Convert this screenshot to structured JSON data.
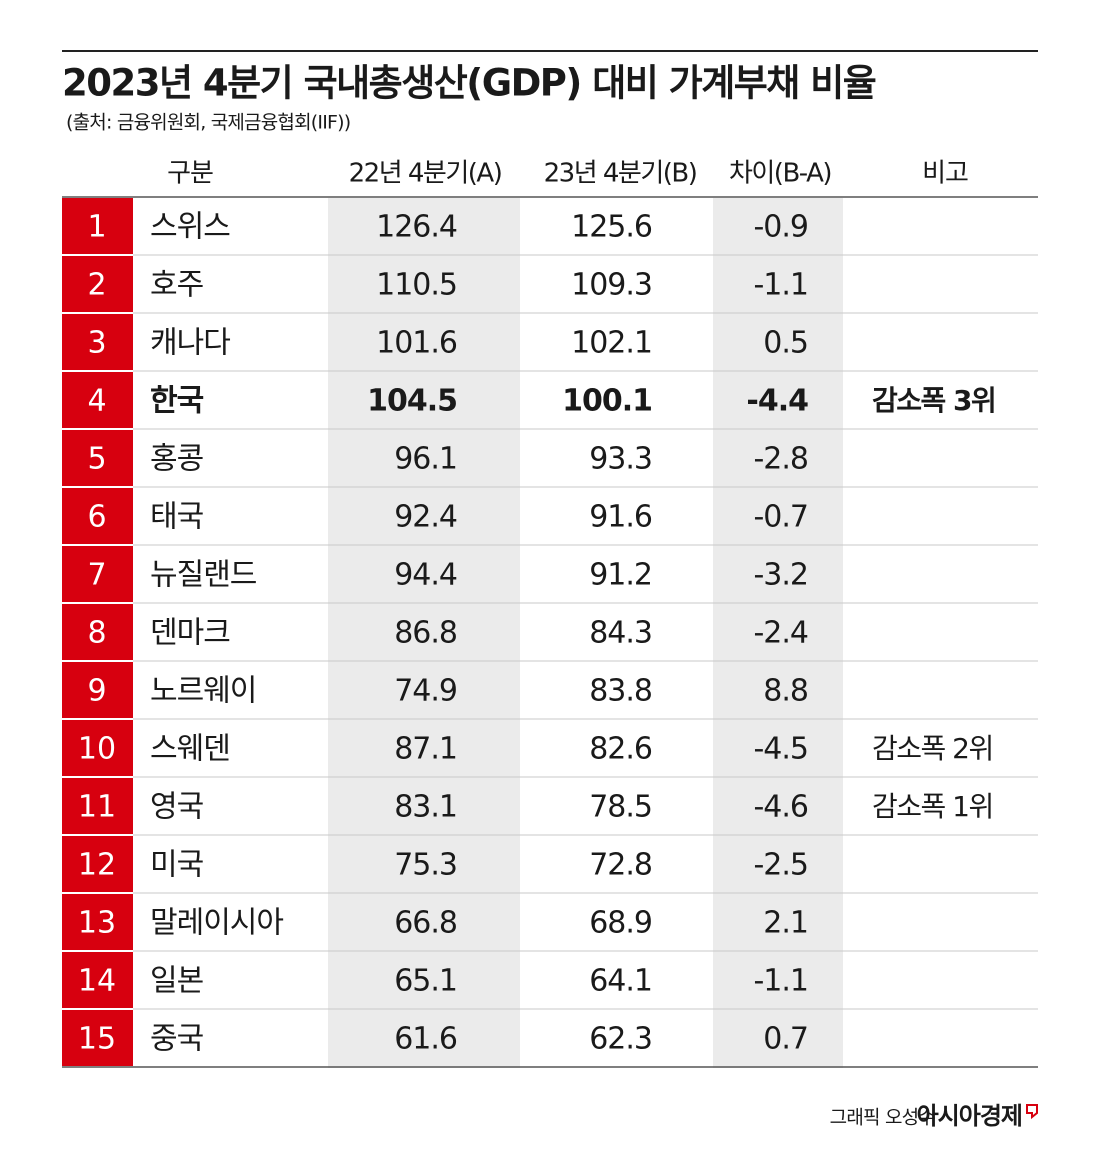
{
  "header": {
    "title": "2023년 4분기 국내총생산(GDP) 대비 가계부채 비율",
    "source": "(출처: 금융위원회, 국제금융협회(IIF))"
  },
  "table": {
    "columns": [
      "구분",
      "22년 4분기(A)",
      "23년 4분기(B)",
      "차이(B-A)",
      "비고"
    ],
    "rows": [
      {
        "rank": 1,
        "country": "스위스",
        "a": 126.4,
        "b": 125.6,
        "diff": -0.9
      },
      {
        "rank": 2,
        "country": "호주",
        "a": 110.5,
        "b": 109.3,
        "diff": -1.1
      },
      {
        "rank": 3,
        "country": "캐나다",
        "a": 101.6,
        "b": 102.1,
        "diff": 0.5
      },
      {
        "rank": 4,
        "country": "한국",
        "a": 104.5,
        "b": 100.1,
        "diff": -4.4,
        "note": "감소폭 3위",
        "bold": true
      },
      {
        "rank": 5,
        "country": "홍콩",
        "a": 96.1,
        "b": 93.3,
        "diff": -2.8
      },
      {
        "rank": 6,
        "country": "태국",
        "a": 92.4,
        "b": 91.6,
        "diff": -0.7
      },
      {
        "rank": 7,
        "country": "뉴질랜드",
        "a": 94.4,
        "b": 91.2,
        "diff": -3.2
      },
      {
        "rank": 8,
        "country": "덴마크",
        "a": 86.8,
        "b": 84.3,
        "diff": -2.4
      },
      {
        "rank": 9,
        "country": "노르웨이",
        "a": 74.9,
        "b": 83.8,
        "diff": 8.8
      },
      {
        "rank": 10,
        "country": "스웨덴",
        "a": 87.1,
        "b": 82.6,
        "diff": -4.5,
        "note": "감소폭 2위"
      },
      {
        "rank": 11,
        "country": "영국",
        "a": 83.1,
        "b": 78.5,
        "diff": -4.6,
        "note": "감소폭 1위"
      },
      {
        "rank": 12,
        "country": "미국",
        "a": 75.3,
        "b": 72.8,
        "diff": -2.5
      },
      {
        "rank": 13,
        "country": "말레이시아",
        "a": 66.8,
        "b": 68.9,
        "diff": 2.1
      },
      {
        "rank": 14,
        "country": "일본",
        "a": 65.1,
        "b": 64.1,
        "diff": -1.1
      },
      {
        "rank": 15,
        "country": "중국",
        "a": 61.6,
        "b": 62.3,
        "diff": 0.7
      }
    ]
  },
  "footer": {
    "credit": "그래픽 오성수",
    "brand": "아시아경제"
  }
}
